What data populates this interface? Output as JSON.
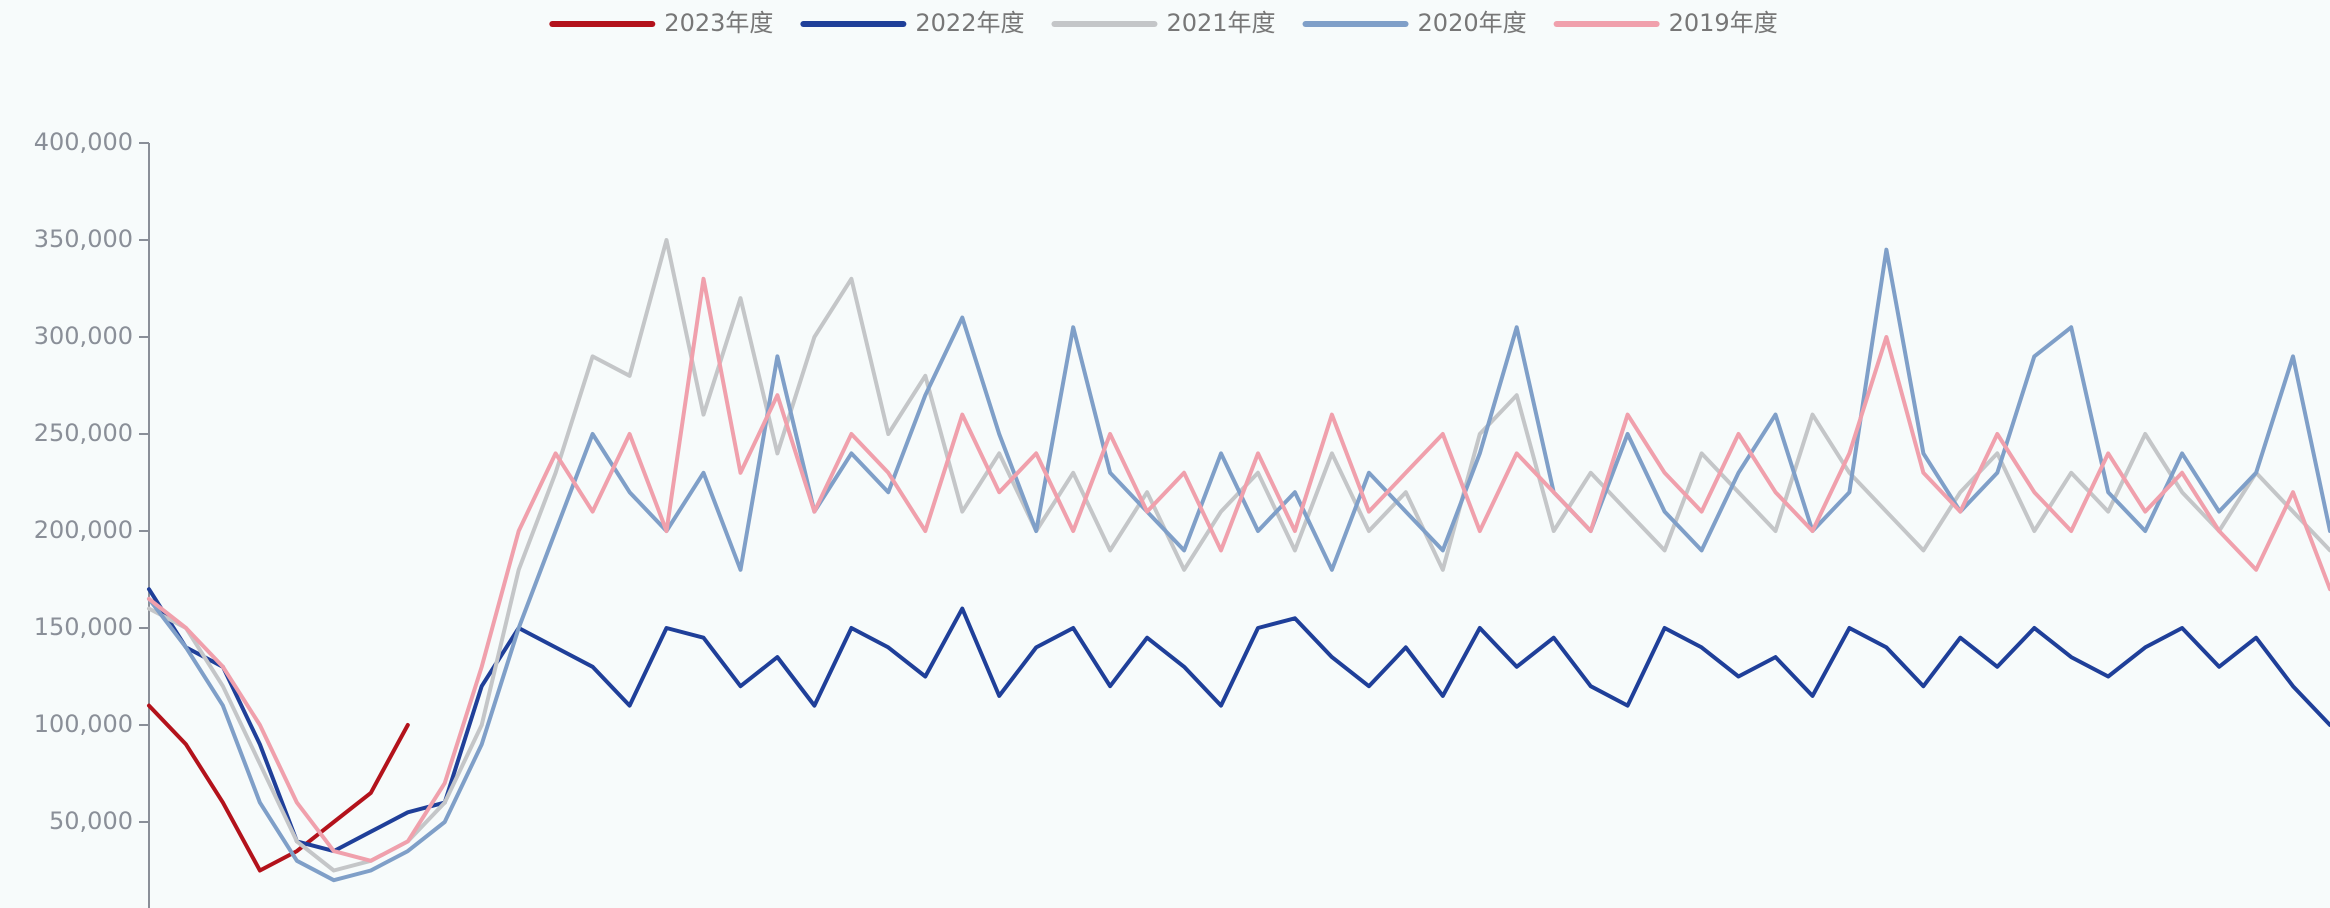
{
  "chart_data": {
    "type": "line",
    "ylim": [
      0,
      400000
    ],
    "yticks": [
      {
        "value": 50000,
        "label": "50,000"
      },
      {
        "value": 100000,
        "label": "100,000"
      },
      {
        "value": 150000,
        "label": "150,000"
      },
      {
        "value": 200000,
        "label": "200,000"
      },
      {
        "value": 250000,
        "label": "250,000"
      },
      {
        "value": 300000,
        "label": "300,000"
      },
      {
        "value": 350000,
        "label": "350,000"
      },
      {
        "value": 400000,
        "label": "400,000"
      }
    ],
    "legend": "top",
    "series": [
      {
        "name": "2023年度",
        "color": "#b3121b",
        "values": [
          110000,
          90000,
          60000,
          25000,
          35000,
          50000,
          65000,
          100000
        ]
      },
      {
        "name": "2022年度",
        "color": "#1f3f99",
        "values": [
          170000,
          140000,
          130000,
          90000,
          40000,
          35000,
          45000,
          55000,
          60000,
          120000,
          150000,
          140000,
          130000,
          110000,
          150000,
          145000,
          120000,
          135000,
          110000,
          150000,
          140000,
          125000,
          160000,
          115000,
          140000,
          150000,
          120000,
          145000,
          130000,
          110000,
          150000,
          155000,
          135000,
          120000,
          140000,
          115000,
          150000,
          130000,
          145000,
          120000,
          110000,
          150000,
          140000,
          125000,
          135000,
          115000,
          150000,
          140000,
          120000,
          145000,
          130000,
          150000,
          135000,
          125000,
          140000,
          150000,
          130000,
          145000,
          120000,
          100000
        ]
      },
      {
        "name": "2021年度",
        "color": "#c4c6c8",
        "values": [
          160000,
          150000,
          120000,
          80000,
          40000,
          25000,
          30000,
          40000,
          60000,
          100000,
          180000,
          230000,
          290000,
          280000,
          350000,
          260000,
          320000,
          240000,
          300000,
          330000,
          250000,
          280000,
          210000,
          240000,
          200000,
          230000,
          190000,
          220000,
          180000,
          210000,
          230000,
          190000,
          240000,
          200000,
          220000,
          180000,
          250000,
          270000,
          200000,
          230000,
          210000,
          190000,
          240000,
          220000,
          200000,
          260000,
          230000,
          210000,
          190000,
          220000,
          240000,
          200000,
          230000,
          210000,
          250000,
          220000,
          200000,
          230000,
          210000,
          190000
        ]
      },
      {
        "name": "2020年度",
        "color": "#7f9fc8",
        "values": [
          165000,
          140000,
          110000,
          60000,
          30000,
          20000,
          25000,
          35000,
          50000,
          90000,
          150000,
          200000,
          250000,
          220000,
          200000,
          230000,
          180000,
          290000,
          210000,
          240000,
          220000,
          270000,
          310000,
          250000,
          200000,
          305000,
          230000,
          210000,
          190000,
          240000,
          200000,
          220000,
          180000,
          230000,
          210000,
          190000,
          240000,
          305000,
          220000,
          200000,
          250000,
          210000,
          190000,
          230000,
          260000,
          200000,
          220000,
          345000,
          240000,
          210000,
          230000,
          290000,
          305000,
          220000,
          200000,
          240000,
          210000,
          230000,
          290000,
          200000
        ]
      },
      {
        "name": "2019年度",
        "color": "#f0a0ac",
        "values": [
          165000,
          150000,
          130000,
          100000,
          60000,
          35000,
          30000,
          40000,
          70000,
          130000,
          200000,
          240000,
          210000,
          250000,
          200000,
          330000,
          230000,
          270000,
          210000,
          250000,
          230000,
          200000,
          260000,
          220000,
          240000,
          200000,
          250000,
          210000,
          230000,
          190000,
          240000,
          200000,
          260000,
          210000,
          230000,
          250000,
          200000,
          240000,
          220000,
          200000,
          260000,
          230000,
          210000,
          250000,
          220000,
          200000,
          240000,
          300000,
          230000,
          210000,
          250000,
          220000,
          200000,
          240000,
          210000,
          230000,
          200000,
          180000,
          220000,
          170000
        ]
      }
    ]
  }
}
